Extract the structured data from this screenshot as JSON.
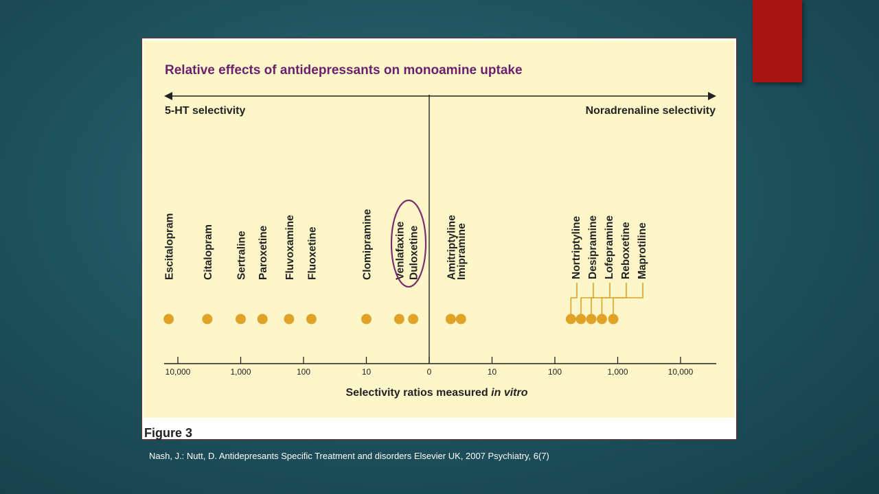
{
  "slide": {
    "figure_caption": "Figure 3",
    "citation": "Nash, J.: Nutt, D. Antidepresants Specific Treatment  and disorders Elsevier UK, 2007 Psychiatry, 6(7)",
    "accent_color": "#a81414"
  },
  "chart_data": {
    "type": "scatter",
    "title": "Relative effects of antidepressants on monoamine uptake",
    "left_direction_label": "5-HT selectivity",
    "right_direction_label": "Noradrenaline selectivity",
    "xlabel": "Selectivity ratios measured ",
    "xlabel_italic": "in vitro",
    "x_scale": "log (mirrored around 0)",
    "tick_labels": [
      "10,000",
      "1,000",
      "100",
      "10",
      "0",
      "10",
      "100",
      "1,000",
      "10,000"
    ],
    "marker_color": "#e0a227",
    "highlight_color": "#7b2d6e",
    "highlighted": [
      "Venlafaxine",
      "Duloxetine"
    ],
    "series": [
      {
        "points": [
          {
            "drug": "Escitalopram",
            "side": "5-HT",
            "ratio": 14000
          },
          {
            "drug": "Citalopram",
            "side": "5-HT",
            "ratio": 3400
          },
          {
            "drug": "Sertraline",
            "side": "5-HT",
            "ratio": 1000
          },
          {
            "drug": "Paroxetine",
            "side": "5-HT",
            "ratio": 450
          },
          {
            "drug": "Fluvoxamine",
            "side": "5-HT",
            "ratio": 170
          },
          {
            "drug": "Fluoxetine",
            "side": "5-HT",
            "ratio": 75
          },
          {
            "drug": "Clomipramine",
            "side": "5-HT",
            "ratio": 10
          },
          {
            "drug": "Venlafaxine",
            "side": "5-HT",
            "ratio": 3
          },
          {
            "drug": "Duloxetine",
            "side": "5-HT",
            "ratio": 1.8
          },
          {
            "drug": "Amitriptyline",
            "side": "NA",
            "ratio": 2.2
          },
          {
            "drug": "Imipramine",
            "side": "NA",
            "ratio": 3.2
          },
          {
            "drug": "Nortriptyline",
            "side": "NA",
            "ratio": 180
          },
          {
            "drug": "Desipramine",
            "side": "NA",
            "ratio": 260
          },
          {
            "drug": "Lofepramine",
            "side": "NA",
            "ratio": 380
          },
          {
            "drug": "Reboxetine",
            "side": "NA",
            "ratio": 560
          },
          {
            "drug": "Maprotiline",
            "side": "NA",
            "ratio": 850
          }
        ]
      }
    ]
  }
}
